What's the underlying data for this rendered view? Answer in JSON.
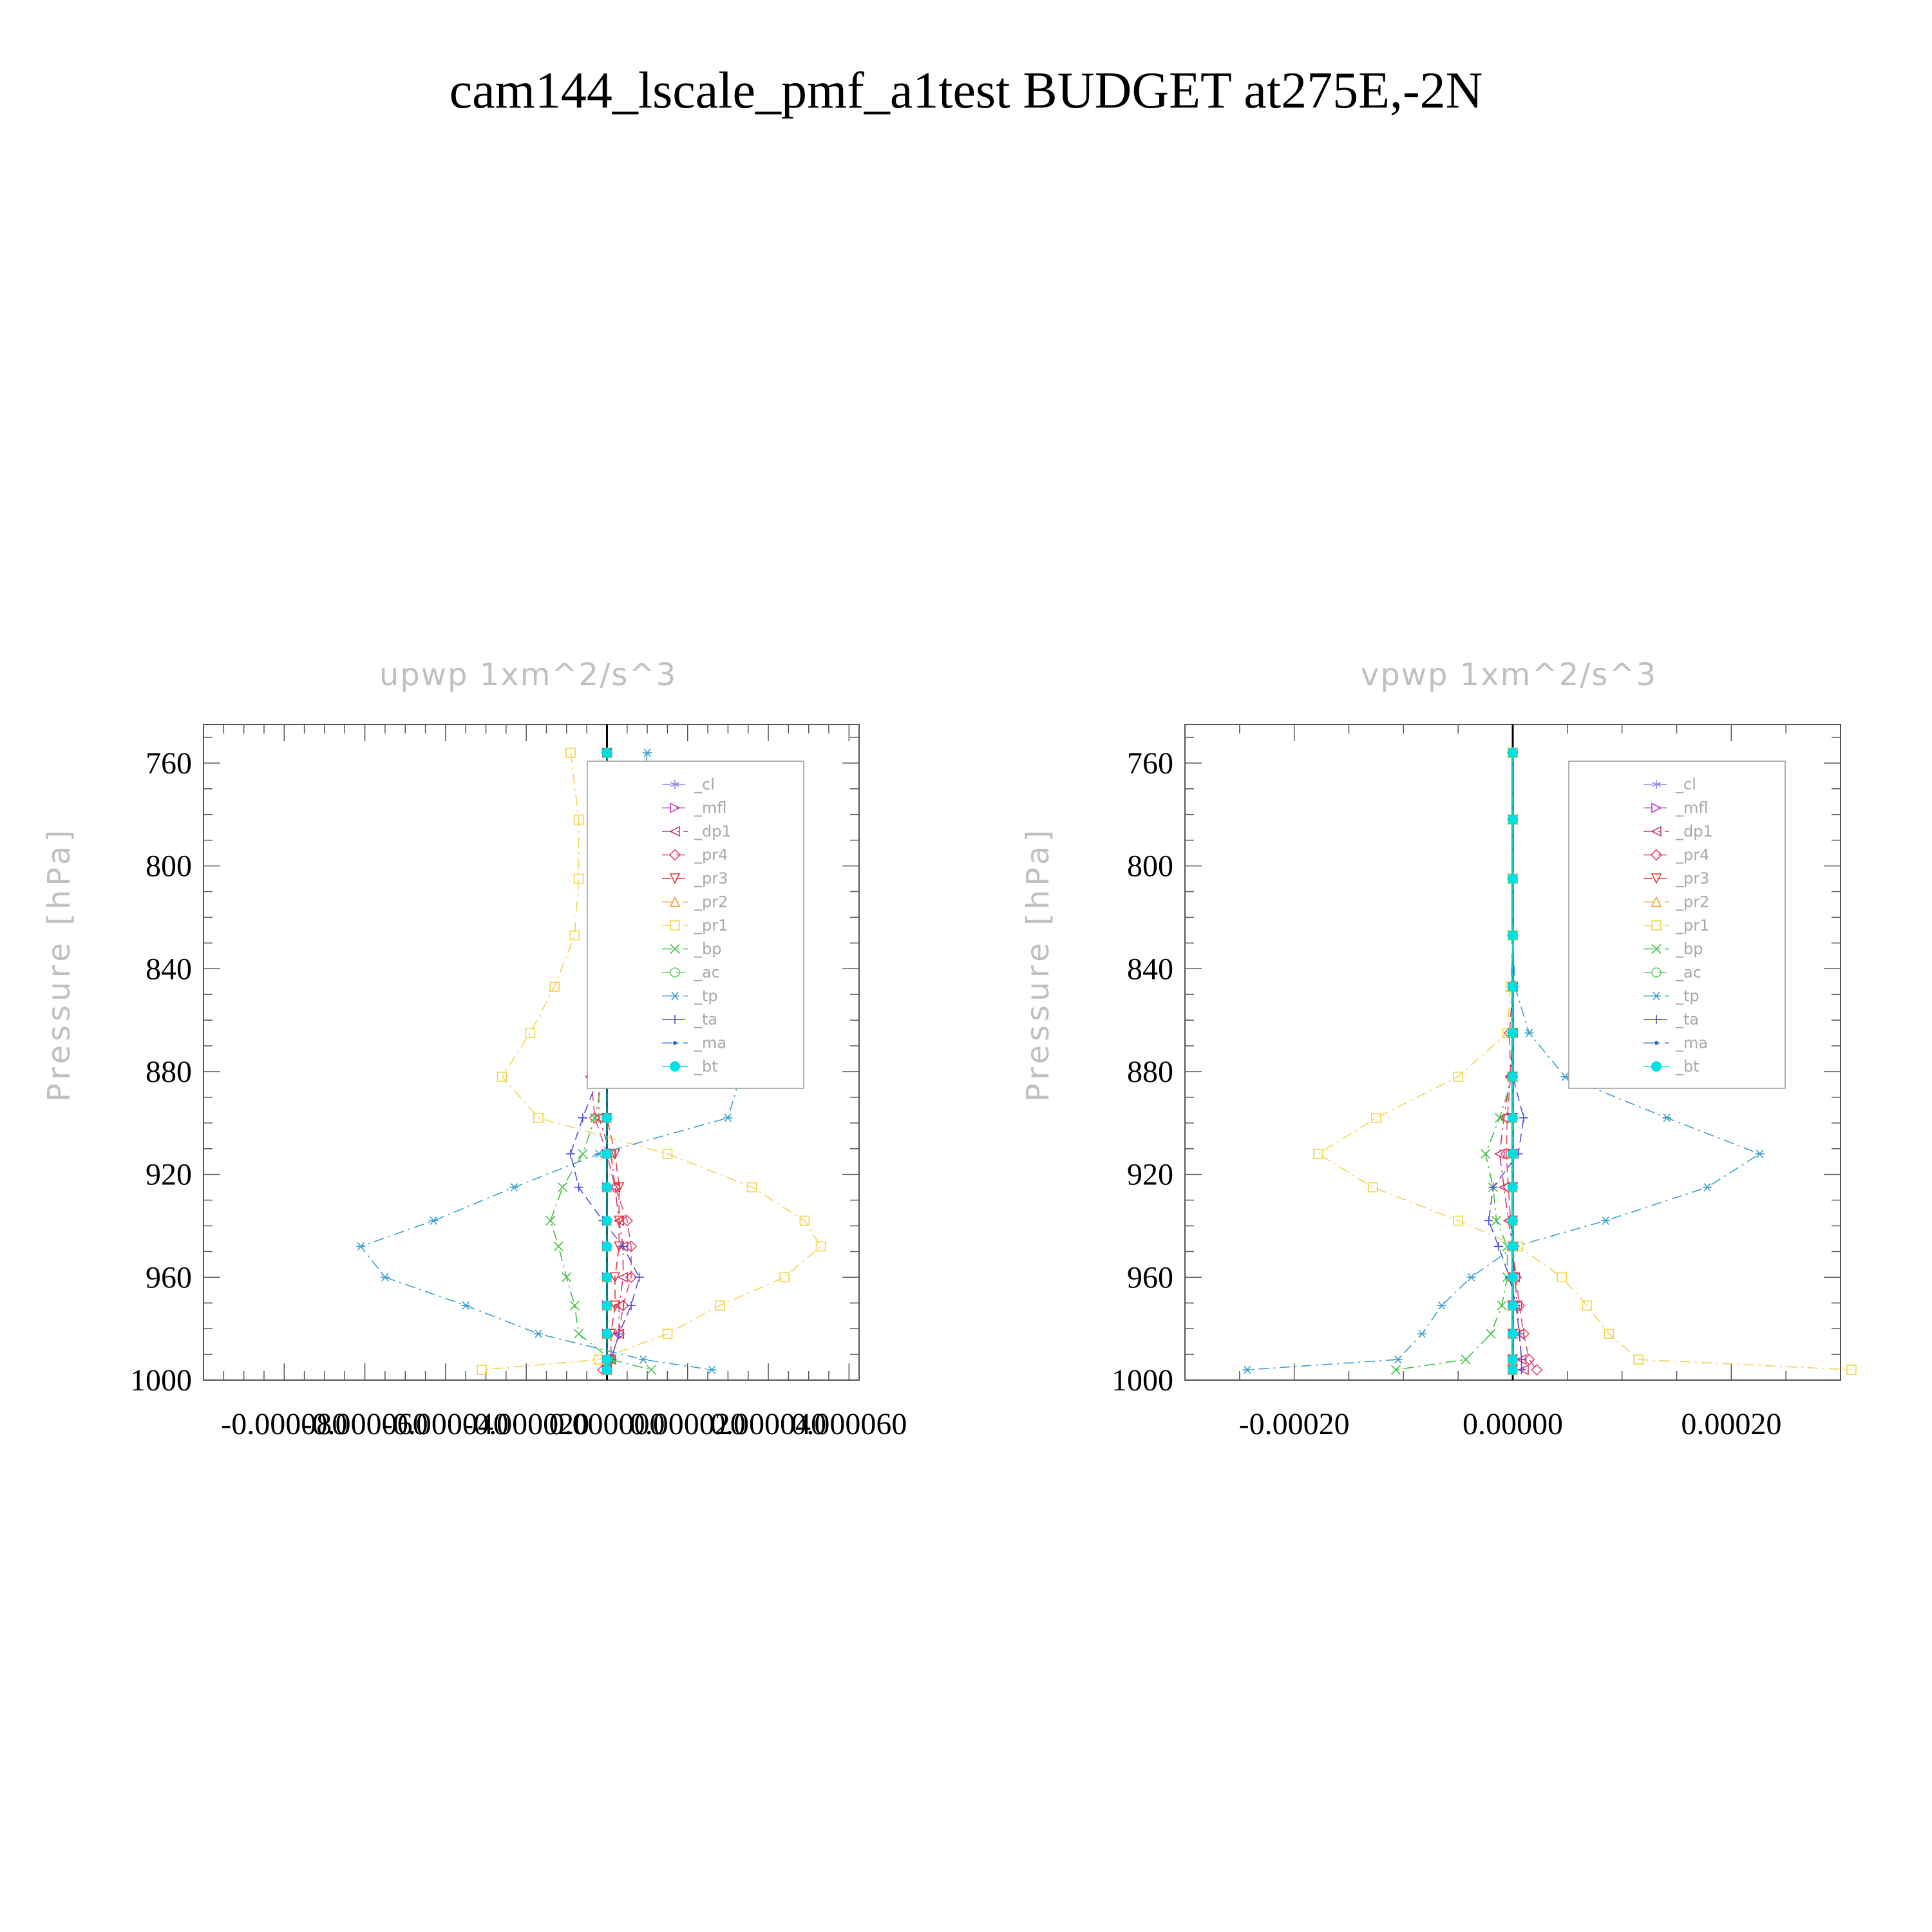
{
  "page": {
    "title": "cam144_lscale_pmf_a1test  BUDGET at275E,-2N"
  },
  "chart_data": [
    {
      "type": "line",
      "title": "upwp   1xm^2/s^3",
      "ylabel": "Pressure [hPa]",
      "xlabel": "",
      "xlim": [
        -0.0001,
        6.25e-05
      ],
      "ylim": [
        1000,
        745
      ],
      "y_inverted": true,
      "xticks": [
        -8e-05,
        -6e-05,
        -4e-05,
        -2e-05,
        0.0,
        2e-05,
        4e-05,
        6e-05
      ],
      "xtick_labels": [
        "-0.000080",
        "-0.000060",
        "-0.000040",
        "-0.000020",
        "0.000000",
        "0.000020",
        "0.000040",
        "0.000060"
      ],
      "yticks": [
        760,
        800,
        840,
        880,
        920,
        960,
        1000
      ],
      "ytick_labels": [
        "760",
        "800",
        "840",
        "880",
        "920",
        "960",
        "1000"
      ],
      "levels": [
        756,
        782,
        805,
        827,
        847,
        865,
        882,
        898,
        912,
        925,
        938,
        948,
        960,
        971,
        982,
        992,
        996
      ],
      "legend_position": "top-right inside",
      "series": [
        {
          "name": "_cl",
          "color": "#9a7fe0",
          "marker": "star",
          "dash": "dash",
          "values": [
            0,
            0,
            0,
            0,
            0,
            0,
            0,
            0,
            0,
            0,
            0,
            0,
            0,
            0,
            0,
            0,
            0
          ]
        },
        {
          "name": "_mfl",
          "color": "#c43ec8",
          "marker": "triangle-right",
          "dash": "dash",
          "values": [
            0,
            0,
            0,
            0,
            0,
            0,
            0,
            0,
            0,
            0,
            0,
            0,
            0,
            0,
            0,
            0,
            0
          ]
        },
        {
          "name": "_dp1",
          "color": "#d0336a",
          "marker": "triangle-left",
          "dash": "dashdot",
          "values": [
            0,
            0,
            0,
            -1e-06,
            -1e-06,
            -2e-06,
            -2e-06,
            -2e-06,
            1e-06,
            2e-06,
            3e-06,
            4e-06,
            4e-06,
            3e-06,
            3e-06,
            1e-06,
            0
          ]
        },
        {
          "name": "_pr4",
          "color": "#e8466e",
          "marker": "diamond",
          "dash": "dash",
          "values": [
            0,
            0,
            0,
            0,
            -1e-06,
            -2e-06,
            -4e-06,
            -3e-06,
            0,
            2e-06,
            5e-06,
            6e-06,
            6e-06,
            4e-06,
            3e-06,
            1e-06,
            -1e-06
          ]
        },
        {
          "name": "_pr3",
          "color": "#e03a3a",
          "marker": "triangle-down",
          "dash": "dash",
          "values": [
            0,
            0,
            0,
            0,
            0,
            0,
            0,
            0,
            2e-06,
            3e-06,
            3e-06,
            3e-06,
            2e-06,
            2e-06,
            1e-06,
            1e-06,
            0
          ]
        },
        {
          "name": "_pr2",
          "color": "#f0a030",
          "marker": "triangle-up",
          "dash": "dashdot",
          "values": [
            0,
            0,
            0,
            0,
            0,
            0,
            0,
            0,
            0,
            0,
            0,
            0,
            0,
            0,
            0,
            0,
            0
          ]
        },
        {
          "name": "_pr1",
          "color": "#f5d24a",
          "marker": "square",
          "dash": "dashdot",
          "values": [
            -9e-06,
            -7e-06,
            -7e-06,
            -8e-06,
            -1.3e-05,
            -1.9e-05,
            -2.6e-05,
            -1.7e-05,
            1.5e-05,
            3.6e-05,
            4.9e-05,
            5.3e-05,
            4.4e-05,
            2.8e-05,
            1.5e-05,
            -2e-06,
            -3.1e-05
          ]
        },
        {
          "name": "_bp",
          "color": "#3fbf3f",
          "marker": "x",
          "dash": "dashdot",
          "values": [
            0,
            0,
            0,
            0,
            0,
            0,
            -1e-06,
            -3e-06,
            -6e-06,
            -1.1e-05,
            -1.4e-05,
            -1.2e-05,
            -1e-05,
            -8e-06,
            -7e-06,
            1e-06,
            1.1e-05
          ]
        },
        {
          "name": "_ac",
          "color": "#66cc66",
          "marker": "circle",
          "dash": "dash",
          "values": [
            0,
            0,
            0,
            0,
            0,
            0,
            0,
            0,
            0,
            0,
            0,
            0,
            0,
            0,
            0,
            0,
            0
          ]
        },
        {
          "name": "_tp",
          "color": "#3aa0cc",
          "marker": "asterisk",
          "dash": "dashdot",
          "values": [
            1e-05,
            8e-06,
            8e-06,
            9e-06,
            1.4e-05,
            2.2e-05,
            3.3e-05,
            3e-05,
            -2e-06,
            -2.3e-05,
            -4.3e-05,
            -6.1e-05,
            -5.5e-05,
            -3.5e-05,
            -1.7e-05,
            9e-06,
            2.6e-05
          ]
        },
        {
          "name": "_ta",
          "color": "#4b4be0",
          "marker": "plus",
          "dash": "dash",
          "values": [
            0,
            0,
            0,
            0,
            0,
            -1e-06,
            -2e-06,
            -6e-06,
            -9e-06,
            -7e-06,
            -1e-06,
            4e-06,
            8e-06,
            6e-06,
            3e-06,
            1e-06,
            0
          ]
        },
        {
          "name": "_ma",
          "color": "#1e6fb8",
          "marker": "dot",
          "dash": "dashdot",
          "values": [
            0,
            0,
            0,
            0,
            0,
            0,
            0,
            0,
            0,
            0,
            0,
            0,
            0,
            0,
            0,
            0,
            0
          ]
        },
        {
          "name": "_bt",
          "color": "#00e0e0",
          "marker": "filled-circle",
          "dash": "solid",
          "values": [
            0,
            0,
            0,
            0,
            0,
            0,
            0,
            0,
            0,
            0,
            0,
            0,
            0,
            0,
            0,
            0,
            0
          ]
        }
      ]
    },
    {
      "type": "line",
      "title": "vpwp   1xm^2/s^3",
      "ylabel": "Pressure [hPa]",
      "xlabel": "",
      "xlim": [
        -0.0003,
        0.0003
      ],
      "ylim": [
        1000,
        745
      ],
      "y_inverted": true,
      "xticks": [
        -0.0002,
        0.0,
        0.0002
      ],
      "xtick_labels": [
        "-0.00020",
        "0.00000",
        "0.00020"
      ],
      "yticks": [
        760,
        800,
        840,
        880,
        920,
        960,
        1000
      ],
      "ytick_labels": [
        "760",
        "800",
        "840",
        "880",
        "920",
        "960",
        "1000"
      ],
      "levels": [
        756,
        782,
        805,
        827,
        847,
        865,
        882,
        898,
        912,
        925,
        938,
        948,
        960,
        971,
        982,
        992,
        996
      ],
      "legend_position": "top-right inside",
      "series": [
        {
          "name": "_cl",
          "color": "#9a7fe0",
          "marker": "star",
          "dash": "dash",
          "values": [
            0,
            0,
            0,
            0,
            0,
            0,
            0,
            0,
            0,
            0,
            0,
            0,
            0,
            0,
            0,
            0,
            0
          ]
        },
        {
          "name": "_mfl",
          "color": "#c43ec8",
          "marker": "triangle-right",
          "dash": "dash",
          "values": [
            0,
            0,
            0,
            0,
            0,
            0,
            0,
            0,
            0,
            0,
            0,
            0,
            0,
            0,
            0,
            0,
            0
          ]
        },
        {
          "name": "_dp1",
          "color": "#d0336a",
          "marker": "triangle-left",
          "dash": "dashdot",
          "values": [
            0,
            0,
            0,
            0,
            0,
            0,
            -2e-06,
            -8e-06,
            -1.2e-05,
            -8e-06,
            -4e-06,
            0,
            2e-06,
            4e-06,
            6e-06,
            8e-06,
            1e-05
          ]
        },
        {
          "name": "_pr4",
          "color": "#e8466e",
          "marker": "diamond",
          "dash": "dash",
          "values": [
            0,
            0,
            0,
            0,
            0,
            -3e-06,
            -2e-06,
            -5e-06,
            -6e-06,
            -4e-06,
            -2e-06,
            0,
            3e-06,
            6e-06,
            1e-05,
            1.5e-05,
            2.2e-05
          ]
        },
        {
          "name": "_pr3",
          "color": "#e03a3a",
          "marker": "triangle-down",
          "dash": "dash",
          "values": [
            0,
            0,
            0,
            0,
            0,
            0,
            0,
            0,
            0,
            0,
            0,
            0,
            0,
            0,
            0,
            0,
            0
          ]
        },
        {
          "name": "_pr2",
          "color": "#f0a030",
          "marker": "triangle-up",
          "dash": "dashdot",
          "values": [
            0,
            0,
            0,
            0,
            0,
            0,
            0,
            0,
            0,
            0,
            0,
            0,
            0,
            0,
            0,
            0,
            0
          ]
        },
        {
          "name": "_pr1",
          "color": "#f5d24a",
          "marker": "square",
          "dash": "dashdot",
          "values": [
            0,
            0,
            0,
            0,
            -2e-06,
            -5e-06,
            -5e-05,
            -0.000125,
            -0.000178,
            -0.000128,
            -5e-05,
            5e-06,
            4.5e-05,
            6.8e-05,
            8.8e-05,
            0.000115,
            0.00031
          ]
        },
        {
          "name": "_bp",
          "color": "#3fbf3f",
          "marker": "x",
          "dash": "dashdot",
          "values": [
            0,
            0,
            0,
            0,
            0,
            0,
            0,
            -1.2e-05,
            -2.5e-05,
            -1.8e-05,
            -1.5e-05,
            -5e-06,
            -5e-06,
            -1e-05,
            -2e-05,
            -4.3e-05,
            -0.000107
          ]
        },
        {
          "name": "_ac",
          "color": "#66cc66",
          "marker": "circle",
          "dash": "dash",
          "values": [
            0,
            0,
            0,
            0,
            0,
            0,
            0,
            0,
            0,
            0,
            0,
            0,
            0,
            0,
            0,
            0,
            0
          ]
        },
        {
          "name": "_tp",
          "color": "#3aa0cc",
          "marker": "asterisk",
          "dash": "dashdot",
          "values": [
            0,
            0,
            0,
            0,
            2e-06,
            1.5e-05,
            4.8e-05,
            0.000141,
            0.000226,
            0.000178,
            8.5e-05,
            2e-06,
            -3.8e-05,
            -6.5e-05,
            -8.3e-05,
            -0.000105,
            -0.000243
          ]
        },
        {
          "name": "_ta",
          "color": "#4b4be0",
          "marker": "plus",
          "dash": "dash",
          "values": [
            0,
            0,
            0,
            0,
            0,
            0,
            0,
            1e-05,
            5e-06,
            -1.8e-05,
            -2.2e-05,
            -1.3e-05,
            -3e-06,
            3e-06,
            6e-06,
            8e-06,
            8e-06
          ]
        },
        {
          "name": "_ma",
          "color": "#1e6fb8",
          "marker": "dot",
          "dash": "dashdot",
          "values": [
            0,
            0,
            0,
            0,
            0,
            0,
            0,
            0,
            0,
            0,
            0,
            0,
            0,
            0,
            0,
            0,
            0
          ]
        },
        {
          "name": "_bt",
          "color": "#00e0e0",
          "marker": "filled-circle",
          "dash": "solid",
          "values": [
            0,
            0,
            0,
            0,
            0,
            0,
            0,
            0,
            0,
            0,
            0,
            0,
            0,
            0,
            0,
            0,
            0
          ]
        }
      ]
    }
  ]
}
